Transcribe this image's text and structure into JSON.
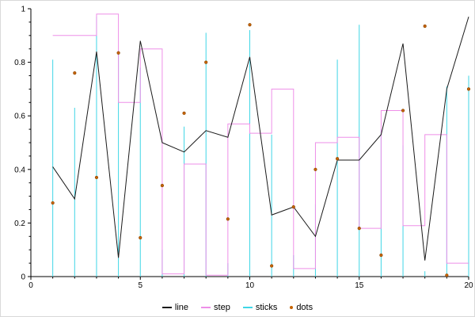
{
  "chart_data": {
    "type": "line",
    "title": "",
    "xlabel": "",
    "ylabel": "",
    "xlim": [
      0,
      20
    ],
    "ylim": [
      0,
      1
    ],
    "grid": false,
    "background": "#ffffff",
    "axis_color": "#000000",
    "x_major_ticks": [
      0,
      5,
      10,
      15,
      20
    ],
    "x_major_labels": [
      "0",
      "5",
      "10",
      "15",
      "20"
    ],
    "x_minor_step": 1,
    "y_major_ticks": [
      0,
      0.2,
      0.4,
      0.6,
      0.8,
      1
    ],
    "y_major_labels": [
      "0",
      "0.2",
      "0.4",
      "0.6",
      "0.8",
      "1"
    ],
    "y_minor_step": 0.05,
    "x": [
      1,
      2,
      3,
      4,
      5,
      6,
      7,
      8,
      9,
      10,
      11,
      12,
      13,
      14,
      15,
      16,
      17,
      18,
      19,
      20
    ],
    "series": [
      {
        "name": "line",
        "type": "line",
        "color": "#1a1a1a",
        "values": [
          0.41,
          0.29,
          0.84,
          0.07,
          0.88,
          0.5,
          0.465,
          0.545,
          0.52,
          0.82,
          0.23,
          0.26,
          0.15,
          0.435,
          0.435,
          0.53,
          0.87,
          0.06,
          0.7,
          0.97
        ]
      },
      {
        "name": "step",
        "type": "step",
        "color": "#ee8fe8",
        "values": [
          0.9,
          0.9,
          0.98,
          0.65,
          0.85,
          0.01,
          0.42,
          0.005,
          0.57,
          0.535,
          0.7,
          0.03,
          0.5,
          0.52,
          0.18,
          0.62,
          0.19,
          0.53,
          0.05,
          0.05
        ]
      },
      {
        "name": "sticks",
        "type": "sticks",
        "color": "#3fd6e6",
        "values": [
          0.81,
          0.63,
          0.97,
          0.84,
          0.78,
          0.1,
          0.56,
          0.91,
          0.05,
          0.92,
          0.53,
          0.08,
          0.27,
          0.81,
          0.94,
          0.55,
          0.49,
          0.02,
          0.71,
          0.75
        ]
      },
      {
        "name": "dots",
        "type": "dots",
        "color": "#c66300",
        "values": [
          0.275,
          0.76,
          0.37,
          0.835,
          0.145,
          0.34,
          0.61,
          0.8,
          0.215,
          0.94,
          0.04,
          0.26,
          0.4,
          0.44,
          0.18,
          0.08,
          0.62,
          0.935,
          0.005,
          0.7
        ]
      }
    ],
    "legend": {
      "position": "bottom-center",
      "entries": [
        "line",
        "step",
        "sticks",
        "dots"
      ]
    }
  }
}
